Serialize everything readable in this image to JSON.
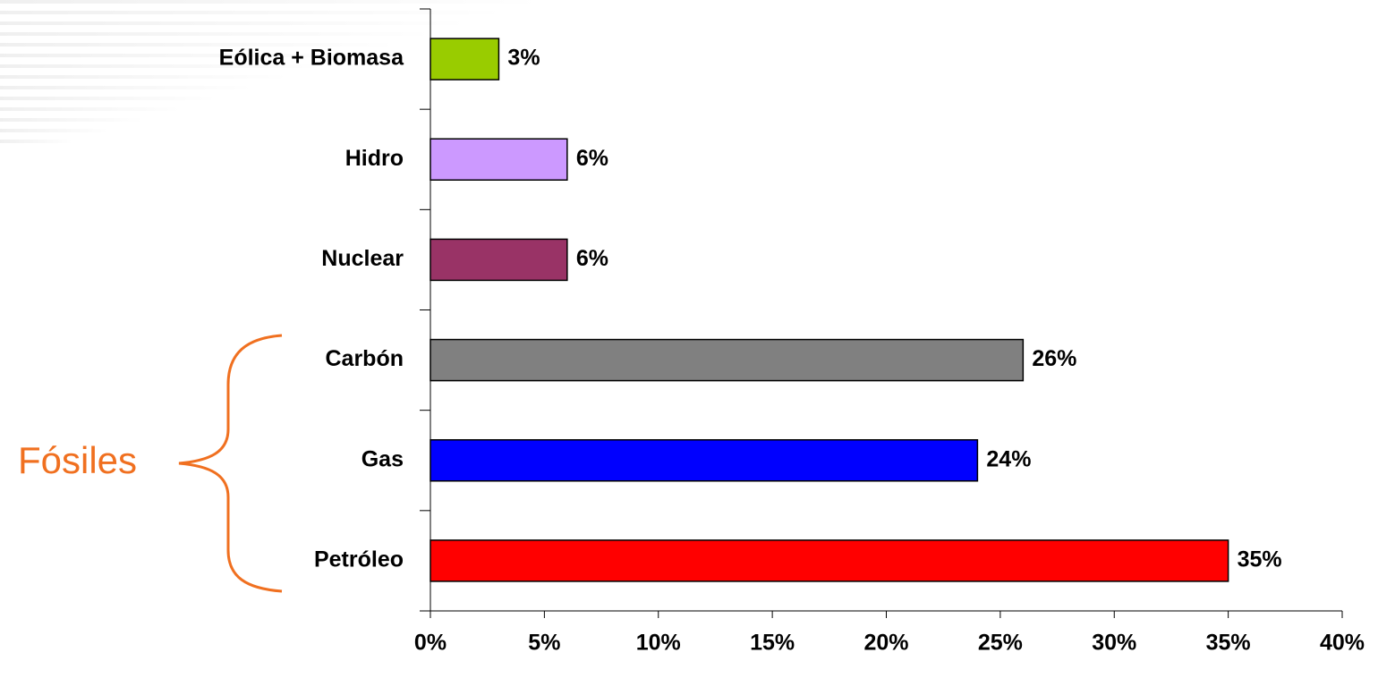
{
  "chart_data": {
    "type": "bar",
    "orientation": "horizontal",
    "categories": [
      "Eólica + Biomasa",
      "Hidro",
      "Nuclear",
      "Carbón",
      "Gas",
      "Petróleo"
    ],
    "values": [
      3,
      6,
      6,
      26,
      24,
      35
    ],
    "value_labels": [
      "3%",
      "6%",
      "6%",
      "26%",
      "24%",
      "35%"
    ],
    "colors": [
      "#99cc00",
      "#cc99ff",
      "#993366",
      "#808080",
      "#0000ff",
      "#ff0000"
    ],
    "xlim": [
      0,
      40
    ],
    "xticks": [
      {
        "value": 0,
        "label": "0%"
      },
      {
        "value": 5,
        "label": "5%"
      },
      {
        "value": 10,
        "label": "10%"
      },
      {
        "value": 15,
        "label": "15%"
      },
      {
        "value": 20,
        "label": "20%"
      },
      {
        "value": 25,
        "label": "25%"
      },
      {
        "value": 30,
        "label": "30%"
      },
      {
        "value": 35,
        "label": "35%"
      },
      {
        "value": 40,
        "label": "40%"
      }
    ],
    "annotation": "Fósiles"
  }
}
